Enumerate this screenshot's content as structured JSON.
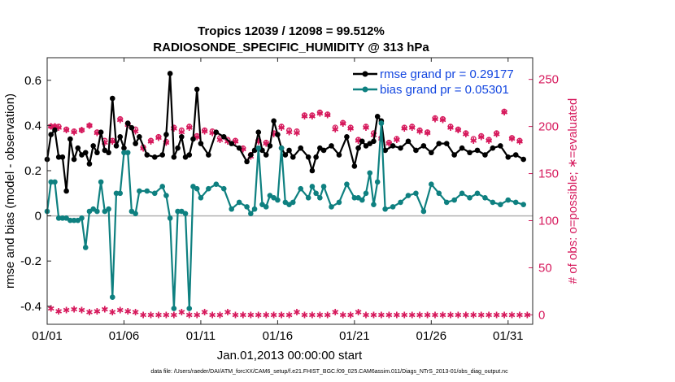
{
  "chart_data": {
    "type": "line",
    "title_line1": "Tropics 12039 / 12098 = 99.512%",
    "title_line2": "RADIOSONDE_SPECIFIC_HUMIDITY @ 313 hPa",
    "xlabel": "Jan.01,2013 00:00:00 start",
    "ylabel": "rmse and bias (model - observation)",
    "ylabel_right": "# of obs: o=possible; ∗=evaluated",
    "footer": "data file: /Users/raeder/DAI/ATM_forcXX/CAM6_setup/f.e21.FHIST_BGC.f09_025.CAM6assim.011/Diags_NTrS_2013-01/obs_diag_output.nc",
    "x_range": [
      0,
      31.6
    ],
    "ylim": [
      -0.48,
      0.7
    ],
    "ylim_right": [
      -10,
      273
    ],
    "x_ticks": [
      0,
      5,
      10,
      15,
      20,
      25,
      30
    ],
    "x_tick_labels": [
      "01/01",
      "01/06",
      "01/11",
      "01/16",
      "01/21",
      "01/26",
      "01/31"
    ],
    "y_ticks": [
      -0.4,
      -0.2,
      0,
      0.2,
      0.4,
      0.6
    ],
    "y_tick_labels": [
      "-0.4",
      "-0.2",
      "0",
      "0.2",
      "0.4",
      "0.6"
    ],
    "y_ticks_right": [
      0,
      50,
      100,
      150,
      200,
      250
    ],
    "y_tick_labels_right": [
      "0",
      "50",
      "100",
      "150",
      "200",
      "250"
    ],
    "zero_line": 0,
    "colors": {
      "rmse": "#000000",
      "bias": "#0e8080",
      "obs": "#d6195c",
      "legend_text": "#1447e0",
      "zero_line": "#b4b4b4"
    },
    "series": [
      {
        "name": "rmse grand pr = 0.29177",
        "axis": "left",
        "x": [
          0,
          0.25,
          0.5,
          0.75,
          1,
          1.25,
          1.5,
          1.75,
          2,
          2.25,
          2.5,
          2.75,
          3,
          3.25,
          3.5,
          3.75,
          4,
          4.25,
          4.5,
          4.75,
          5,
          5.25,
          5.5,
          5.75,
          6,
          6.5,
          7,
          7.5,
          7.75,
          8,
          8.25,
          8.5,
          8.75,
          9,
          9.25,
          9.5,
          9.75,
          10,
          10.5,
          11,
          11.5,
          12,
          12.5,
          13,
          13.25,
          13.5,
          13.75,
          14,
          14.25,
          14.5,
          14.75,
          15,
          15.25,
          15.5,
          15.75,
          16,
          16.5,
          17,
          17.25,
          17.5,
          17.75,
          18,
          18.5,
          19,
          19.5,
          20,
          20.25,
          20.5,
          20.75,
          21,
          21.25,
          21.5,
          21.75,
          22,
          22.5,
          23,
          23.5,
          24,
          24.5,
          25,
          25.5,
          26,
          26.5,
          27,
          27.5,
          28,
          28.5,
          29,
          29.5,
          30,
          30.5,
          31
        ],
        "values": [
          0.25,
          0.36,
          0.38,
          0.26,
          0.26,
          0.11,
          0.34,
          0.25,
          0.3,
          0.27,
          0.28,
          0.23,
          0.31,
          0.28,
          0.37,
          0.29,
          0.28,
          0.52,
          0.31,
          0.35,
          0.3,
          0.41,
          0.39,
          0.32,
          0.35,
          0.27,
          0.26,
          0.27,
          0.36,
          0.63,
          0.26,
          0.3,
          0.35,
          0.26,
          0.27,
          0.34,
          0.56,
          0.32,
          0.27,
          0.37,
          0.35,
          0.32,
          0.3,
          0.24,
          0.27,
          0.29,
          0.37,
          0.29,
          0.27,
          0.31,
          0.42,
          0.36,
          0.3,
          0.27,
          0.29,
          0.26,
          0.3,
          0.26,
          0.2,
          0.26,
          0.3,
          0.29,
          0.31,
          0.27,
          0.35,
          0.22,
          0.3,
          0.33,
          0.31,
          0.32,
          0.33,
          0.44,
          0.42,
          0.29,
          0.31,
          0.3,
          0.33,
          0.29,
          0.31,
          0.28,
          0.32,
          0.32,
          0.27,
          0.3,
          0.28,
          0.29,
          0.27,
          0.3,
          0.31,
          0.26,
          0.27,
          0.25
        ]
      },
      {
        "name": "bias grand pr = 0.05301",
        "axis": "left",
        "x": [
          0,
          0.25,
          0.5,
          0.75,
          1,
          1.25,
          1.5,
          1.75,
          2,
          2.25,
          2.5,
          2.75,
          3,
          3.25,
          3.5,
          3.75,
          4,
          4.25,
          4.5,
          4.75,
          5,
          5.25,
          5.5,
          5.75,
          6,
          6.5,
          7,
          7.5,
          7.75,
          8,
          8.25,
          8.5,
          8.75,
          9,
          9.25,
          9.5,
          9.75,
          10,
          10.5,
          11,
          11.5,
          12,
          12.5,
          13,
          13.25,
          13.5,
          13.75,
          14,
          14.25,
          14.5,
          14.75,
          15,
          15.25,
          15.5,
          15.75,
          16,
          16.5,
          17,
          17.25,
          17.5,
          17.75,
          18,
          18.5,
          19,
          19.5,
          20,
          20.25,
          20.5,
          20.75,
          21,
          21.25,
          21.5,
          21.75,
          22,
          22.5,
          23,
          23.5,
          24,
          24.5,
          25,
          25.5,
          26,
          26.5,
          27,
          27.5,
          28,
          28.5,
          29,
          29.5,
          30,
          30.5,
          31
        ],
        "values": [
          0.02,
          0.15,
          0.15,
          -0.01,
          -0.01,
          -0.01,
          -0.02,
          -0.02,
          -0.02,
          -0.01,
          -0.14,
          0.02,
          0.03,
          0.02,
          0.15,
          0.02,
          0.03,
          -0.36,
          0.1,
          0.1,
          0.28,
          0.28,
          0.02,
          0.01,
          0.11,
          0.11,
          0.1,
          0.13,
          0.09,
          -0.01,
          -0.41,
          0.02,
          0.02,
          0.01,
          -0.41,
          0.13,
          0.12,
          0.08,
          0.12,
          0.14,
          0.12,
          0.03,
          0.06,
          0.04,
          0.01,
          0.03,
          0.3,
          0.05,
          0.04,
          0.09,
          0.08,
          0.07,
          0.3,
          0.06,
          0.05,
          0.06,
          0.12,
          0.08,
          0.13,
          0.1,
          0.08,
          0.13,
          0.04,
          0.06,
          0.14,
          0.08,
          0.08,
          0.07,
          0.1,
          0.19,
          0.05,
          0.15,
          0.41,
          0.03,
          0.04,
          0.06,
          0.09,
          0.1,
          0.02,
          0.14,
          0.1,
          0.06,
          0.07,
          0.1,
          0.08,
          0.1,
          0.08,
          0.06,
          0.05,
          0.07,
          0.06,
          0.05
        ]
      },
      {
        "name": "# obs possible",
        "axis": "right",
        "marker": "o",
        "x": [
          0.25,
          0.5,
          0.75,
          1.25,
          1.75,
          2.25,
          2.75,
          3.25,
          3.75,
          4.25,
          4.75,
          5.25,
          5.75,
          6.25,
          6.75,
          7.25,
          7.75,
          8.25,
          8.75,
          9.25,
          9.75,
          10.25,
          10.75,
          11.25,
          11.75,
          12.25,
          12.75,
          13.25,
          13.75,
          14.25,
          14.75,
          15.25,
          15.75,
          16.25,
          16.75,
          17.25,
          17.75,
          18.25,
          18.75,
          19.25,
          19.75,
          20.25,
          20.75,
          21.25,
          21.75,
          22.25,
          22.75,
          23.25,
          23.75,
          24.25,
          24.75,
          25.25,
          25.75,
          26.25,
          26.75,
          27.25,
          27.75,
          28.25,
          28.75,
          29.25,
          29.75,
          30.25,
          30.75
        ],
        "values": [
          200,
          200,
          200,
          197,
          195,
          196,
          201,
          194,
          185,
          185,
          208,
          203,
          197,
          178,
          185,
          189,
          184,
          199,
          196,
          200,
          190,
          196,
          195,
          188,
          186,
          185,
          177,
          170,
          185,
          183,
          193,
          200,
          196,
          195,
          212,
          212,
          215,
          213,
          199,
          204,
          199,
          186,
          200,
          193,
          188,
          183,
          187,
          199,
          200,
          196,
          194,
          209,
          208,
          200,
          197,
          193,
          187,
          190,
          186,
          193,
          216,
          188,
          185
        ]
      },
      {
        "name": "# obs evaluated",
        "axis": "right",
        "marker": "*",
        "x": [
          0.25,
          0.5,
          0.75,
          1.25,
          1.75,
          2.25,
          2.75,
          3.25,
          3.75,
          4.25,
          4.75,
          5.25,
          5.75,
          6.25,
          6.75,
          7.25,
          7.75,
          8.25,
          8.75,
          9.25,
          9.75,
          10.25,
          10.75,
          11.25,
          11.75,
          12.25,
          12.75,
          13.25,
          13.75,
          14.25,
          14.75,
          15.25,
          15.75,
          16.25,
          16.75,
          17.25,
          17.75,
          18.25,
          18.75,
          19.25,
          19.75,
          20.25,
          20.75,
          21.25,
          21.75,
          22.25,
          22.75,
          23.25,
          23.75,
          24.25,
          24.75,
          25.25,
          25.75,
          26.25,
          26.75,
          27.25,
          27.75,
          28.25,
          28.75,
          29.25,
          29.75,
          30.25,
          30.75
        ],
        "values": [
          200,
          200,
          199,
          196,
          194,
          196,
          201,
          193,
          183,
          184,
          207,
          202,
          195,
          177,
          184,
          188,
          183,
          198,
          194,
          199,
          189,
          195,
          193,
          186,
          184,
          184,
          176,
          168,
          184,
          182,
          192,
          199,
          194,
          193,
          211,
          211,
          214,
          212,
          197,
          203,
          198,
          185,
          199,
          191,
          187,
          182,
          186,
          198,
          199,
          195,
          193,
          208,
          207,
          199,
          196,
          192,
          185,
          189,
          185,
          192,
          215,
          187,
          184
        ]
      },
      {
        "name": "# obs bottom",
        "axis": "right",
        "marker": "*",
        "x": [
          0.25,
          0.75,
          1.25,
          1.75,
          2.25,
          2.75,
          3.25,
          3.75,
          4.25,
          4.75,
          5.25,
          5.75,
          6.25,
          6.75,
          7.25,
          7.75,
          8.25,
          8.75,
          9.25,
          9.75,
          10.25,
          10.75,
          11.25,
          11.75,
          12.25,
          12.75,
          13.25,
          13.75,
          14.25,
          14.75,
          15.25,
          15.75,
          16.25,
          16.75,
          17.25,
          17.75,
          18.25,
          18.75,
          19.25,
          19.75,
          20.25,
          20.75,
          21.25,
          21.75,
          22.25,
          22.75,
          23.25,
          23.75,
          24.25,
          24.75,
          25.25,
          25.75,
          26.25,
          26.75,
          27.25,
          27.75,
          28.25,
          28.75,
          29.25,
          29.75,
          30.25,
          30.75,
          31.25
        ],
        "values": [
          7,
          4,
          5,
          6,
          5,
          3,
          4,
          6,
          3,
          5,
          4,
          3,
          0,
          0,
          0,
          0,
          0,
          3,
          0,
          0,
          3,
          0,
          0,
          3,
          0,
          0,
          0,
          0,
          0,
          0,
          0,
          0,
          3,
          0,
          0,
          0,
          0,
          3,
          0,
          0,
          3,
          0,
          0,
          0,
          0,
          0,
          0,
          0,
          0,
          0,
          0,
          0,
          0,
          0,
          0,
          0,
          0,
          0,
          0,
          0,
          0,
          0,
          0
        ]
      }
    ]
  }
}
